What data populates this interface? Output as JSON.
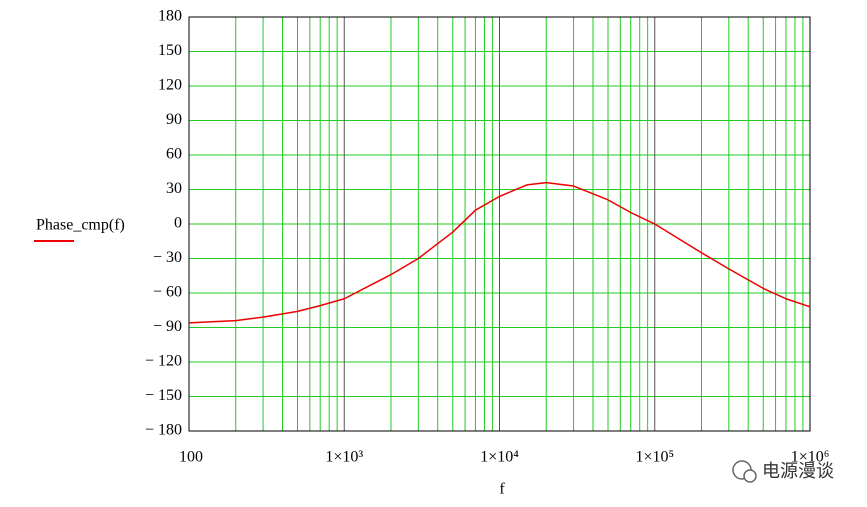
{
  "chart_data": {
    "type": "line",
    "xlabel": "f",
    "x": [
      100,
      200,
      300,
      500,
      700,
      1000,
      2000,
      3000,
      5000,
      7000,
      10000,
      15000,
      20000,
      30000,
      50000,
      70000,
      100000,
      200000,
      300000,
      500000,
      700000,
      1000000
    ],
    "series": [
      {
        "name": "Phase_cmp(f)",
        "color": "#ee0000",
        "values": [
          -86,
          -84,
          -81,
          -76,
          -71,
          -65,
          -44,
          -30,
          -7,
          12,
          24,
          34,
          36,
          33,
          21,
          10,
          0,
          -25,
          -39,
          -56,
          -65,
          -72
        ]
      }
    ],
    "xlim": [
      100,
      1000000
    ],
    "xticks": [
      100,
      {
        "value": 1000,
        "label": "1×10³"
      },
      {
        "value": 10000,
        "label": "1×10⁴"
      },
      {
        "value": 100000,
        "label": "1×10⁵"
      },
      {
        "value": 1000000,
        "label": "1×10⁶"
      }
    ],
    "xscale": "log",
    "ylim": [
      -180,
      180
    ],
    "yticks": [
      180,
      150,
      120,
      90,
      60,
      30,
      0,
      {
        "value": -30,
        "label": "− 30"
      },
      {
        "value": -60,
        "label": "− 60"
      },
      {
        "value": -90,
        "label": "− 90"
      },
      {
        "value": -120,
        "label": "− 120"
      },
      {
        "value": -150,
        "label": "− 150"
      },
      {
        "value": -180,
        "label": "− 180"
      }
    ],
    "grid": true,
    "grid_color": "#22cc22",
    "major_grid_color": "#555555",
    "annotation": "电源漫谈"
  }
}
